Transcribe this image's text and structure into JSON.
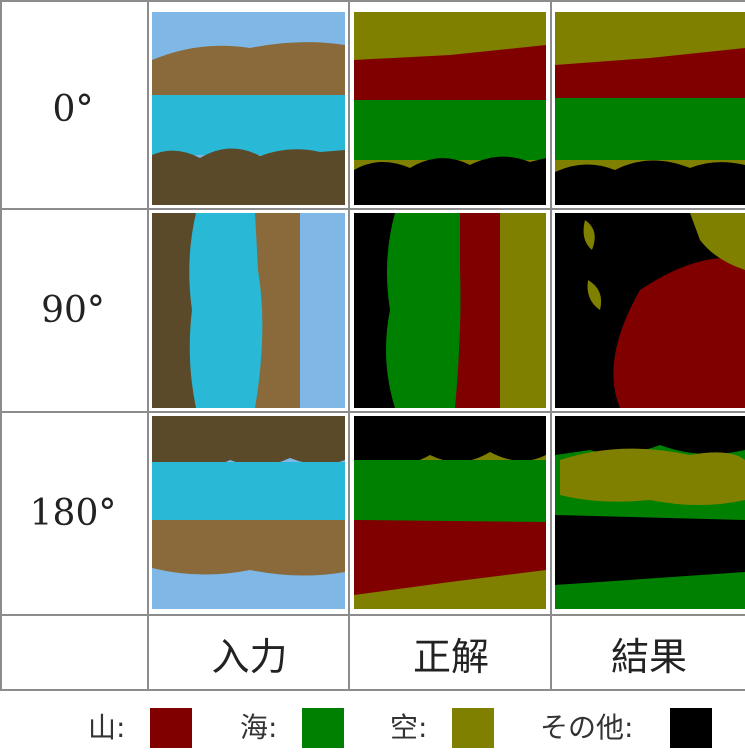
{
  "rows": [
    {
      "label": "0°"
    },
    {
      "label": "90°"
    },
    {
      "label": "180°"
    }
  ],
  "columns": [
    "入力",
    "正解",
    "結果"
  ],
  "legend": [
    {
      "label": "山:",
      "color": "#800000"
    },
    {
      "label": "海:",
      "color": "#008000"
    },
    {
      "label": "空:",
      "color": "#808000"
    },
    {
      "label": "その他:",
      "color": "#000000"
    }
  ],
  "palette": {
    "mountain": "#800000",
    "sea": "#008000",
    "sky": "#808000",
    "other": "#000000",
    "photo_sky": "#7fb8e6",
    "photo_sea": "#29b9d6",
    "photo_hill": "#8a6a3a",
    "photo_tree": "#5a4a2a"
  }
}
